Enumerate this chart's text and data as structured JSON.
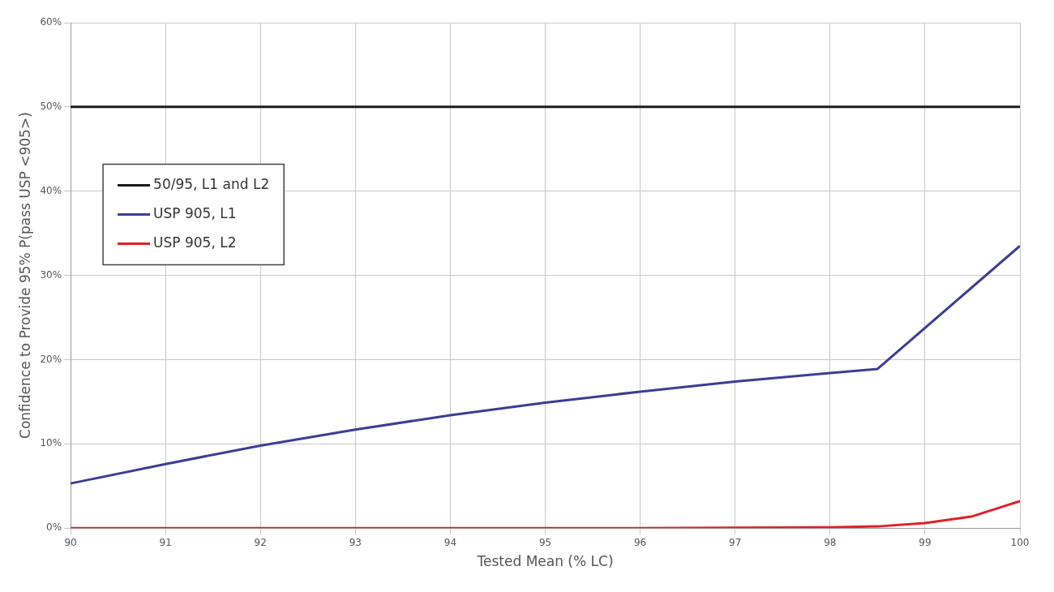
{
  "chart_data": {
    "type": "line",
    "xlabel": "Tested Mean (% LC)",
    "ylabel": "Confidence to Provide 95% P(pass USP <905>)",
    "xlim": [
      90,
      100
    ],
    "xticks": [
      90,
      91,
      92,
      93,
      94,
      95,
      96,
      97,
      98,
      99,
      100
    ],
    "ylim": [
      0,
      60
    ],
    "yticks": [
      {
        "value": 0,
        "label": "0%"
      },
      {
        "value": 10,
        "label": "10%"
      },
      {
        "value": 20,
        "label": "20%"
      },
      {
        "value": 30,
        "label": "30%"
      },
      {
        "value": 40,
        "label": "40%"
      },
      {
        "value": 50,
        "label": "50%"
      },
      {
        "value": 60,
        "label": "60%"
      }
    ],
    "grid": true,
    "legend": "left",
    "marker": "none",
    "line_style": "solid",
    "series": [
      {
        "name": "50/95, L1 and L2",
        "color": "#1a1a1a",
        "x": [
          90,
          100
        ],
        "values": [
          50,
          50
        ]
      },
      {
        "name": "USP 905, L1",
        "color": "#3c3c96",
        "x": [
          90,
          91,
          92,
          93,
          94,
          95,
          96,
          97,
          98,
          98.5,
          100
        ],
        "values": [
          5.3,
          7.6,
          9.8,
          11.7,
          13.4,
          14.9,
          16.2,
          17.4,
          18.4,
          18.9,
          33.5
        ]
      },
      {
        "name": "USP 905, L2",
        "color": "#e0202a",
        "x": [
          90,
          92,
          94,
          96,
          98,
          98.5,
          99,
          99.5,
          100
        ],
        "values": [
          0,
          0,
          0,
          0,
          0.1,
          0.2,
          0.6,
          1.4,
          3.2
        ]
      }
    ]
  }
}
